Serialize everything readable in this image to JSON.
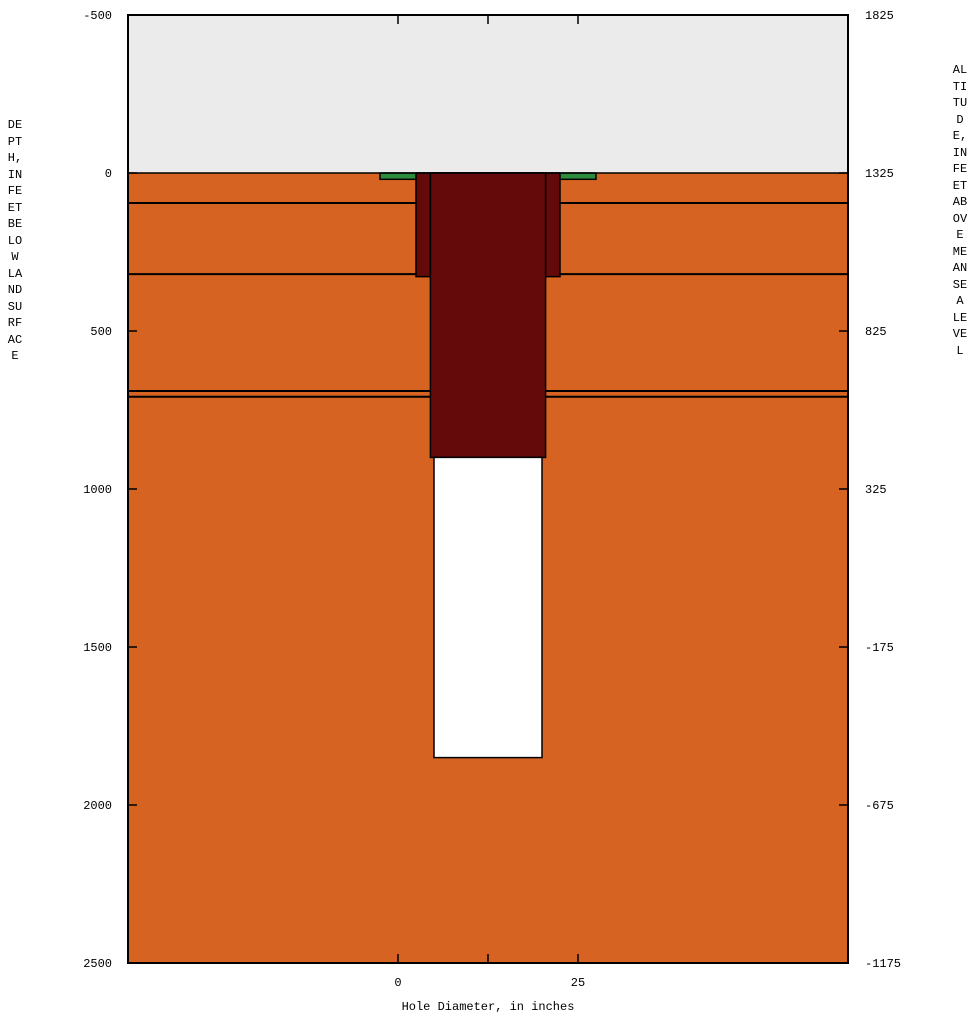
{
  "chart_data": {
    "type": "well-construction-diagram",
    "left_axis": {
      "label": "DEPTH, IN FEET BELOW LAND SURFACE",
      "range": [
        -500,
        2500
      ],
      "ticks": [
        -500,
        0,
        500,
        1000,
        1500,
        2000,
        2500
      ]
    },
    "right_axis": {
      "label": "ALTITUDE, IN FEET ABOVE MEAN SEA LEVEL",
      "range": [
        1825,
        -1175
      ],
      "ticks": [
        1825,
        1325,
        825,
        325,
        -175,
        -675,
        -1175
      ]
    },
    "x_axis": {
      "label": "Hole Diameter, in inches",
      "ticks": [
        0,
        25
      ],
      "minor_ticks": [
        12.5
      ]
    },
    "land_surface_depth": 0,
    "formation_boundaries": [
      95,
      320,
      690,
      708
    ],
    "components": [
      {
        "name": "surface pad",
        "color": "#2E8B3E",
        "from_depth": 0,
        "to_depth": 20,
        "diameter_in": 30
      },
      {
        "name": "conductor casing",
        "color": "#640A0A",
        "from_depth": 0,
        "to_depth": 328,
        "diameter_in": 20
      },
      {
        "name": "surface casing",
        "color": "#640A0A",
        "from_depth": 0,
        "to_depth": 900,
        "diameter_in": 16
      },
      {
        "name": "open hole",
        "color": "#FFFFFF",
        "from_depth": 900,
        "to_depth": 1850,
        "diameter_in": 15
      }
    ],
    "colors": {
      "air": "#EBEBEB",
      "formation": "#D66322",
      "casing": "#640A0A",
      "pad": "#2E8B3E"
    }
  }
}
